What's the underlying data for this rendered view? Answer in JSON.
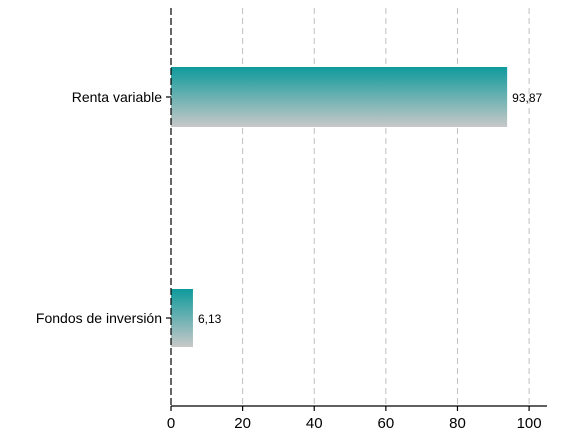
{
  "chart_data": {
    "type": "bar",
    "orientation": "horizontal",
    "categories": [
      "Renta variable",
      "Fondos de inversión"
    ],
    "values": [
      93.87,
      6.13
    ],
    "value_labels": [
      "93,87",
      "6,13"
    ],
    "xlim": [
      0,
      105
    ],
    "xticks": [
      0,
      20,
      40,
      60,
      80,
      100
    ],
    "xtick_labels": [
      "0",
      "20",
      "40",
      "60",
      "80",
      "100"
    ],
    "title": "",
    "xlabel": "",
    "ylabel": "",
    "grid": "vertical dashed",
    "legend": "none",
    "colors": {
      "bar_top": "#0f9a9c",
      "bar_bottom": "#c8c8c8",
      "grid": "#c0c0c0",
      "axis": "#000000"
    }
  }
}
